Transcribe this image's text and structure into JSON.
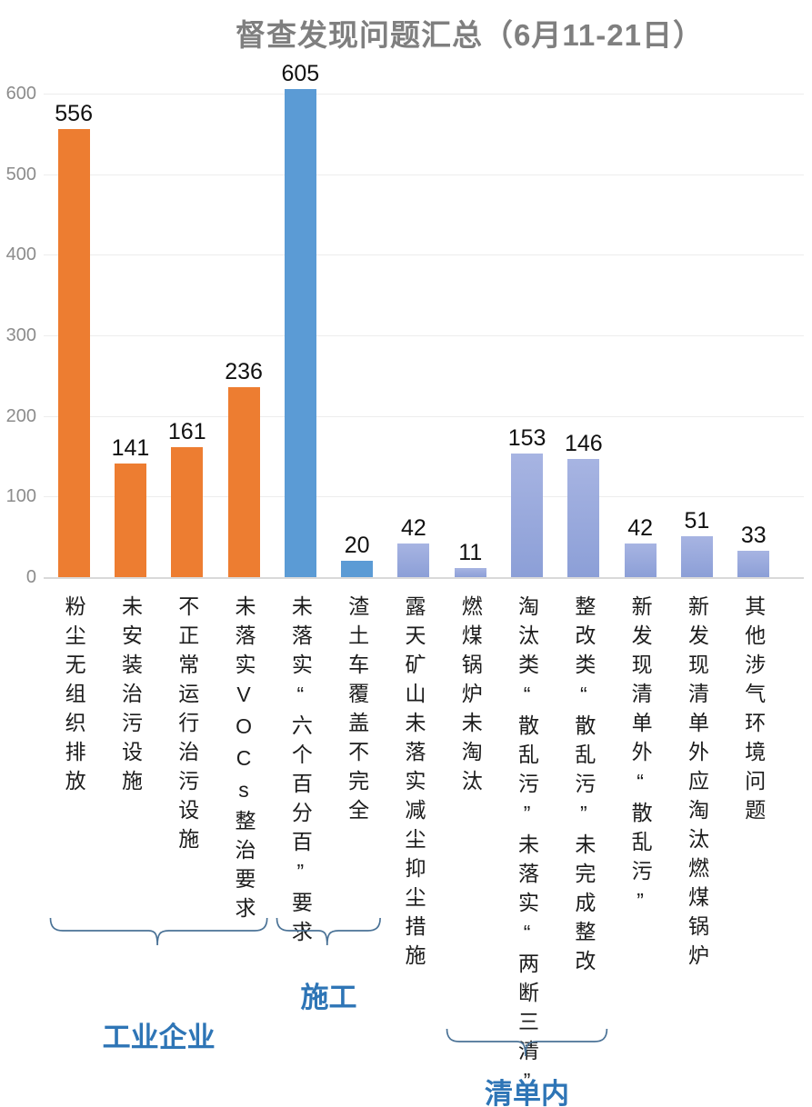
{
  "colors": {
    "orange": "#ED7D31",
    "blue": "#5B9BD5",
    "periwinkle_top": "#A7B4E2",
    "periwinkle_bottom": "#8C9FD7",
    "title_gray": "#7F7F7F",
    "axis_gray": "#8C8C8C",
    "gridline": "#EDEDED",
    "axis_line": "#D9D9D9",
    "value_black": "#111111",
    "brace": "#4A7296",
    "group_label": "#2E75B6"
  },
  "chart_data": {
    "type": "bar",
    "title": "督查发现问题汇总（6月11-21日）",
    "categories": [
      "粉尘无组织排放",
      "未安装治污设施",
      "不正常运行治污设施",
      "未落实VOCs整治要求",
      "未落实“六个百分百”要求",
      "渣土车覆盖不完全",
      "露天矿山未落实减尘抑尘措施",
      "燃煤锅炉未淘汰",
      "淘汰类“散乱污”未落实“两断三清”",
      "整改类“散乱污”未完成整改",
      "新发现清单外“散乱污”",
      "新发现清单外应淘汰燃煤锅炉",
      "其他涉气环境问题"
    ],
    "values": [
      556,
      141,
      161,
      236,
      605,
      20,
      42,
      11,
      153,
      146,
      42,
      51,
      33
    ],
    "bar_colors": [
      "orange",
      "orange",
      "orange",
      "orange",
      "blue",
      "blue",
      "periwinkle",
      "periwinkle",
      "periwinkle",
      "periwinkle",
      "periwinkle",
      "periwinkle",
      "periwinkle"
    ],
    "xlabel": "",
    "ylabel": "",
    "ylim": [
      0,
      600
    ],
    "yticks": [
      0,
      100,
      200,
      300,
      400,
      500,
      600
    ],
    "grid": "horizontal",
    "legend": "none",
    "groups": [
      {
        "label": "工业企业",
        "from": 0,
        "to": 3
      },
      {
        "label": "施工",
        "from": 4,
        "to": 5
      },
      {
        "label": "清单内",
        "from": 7,
        "to": 9
      }
    ]
  }
}
